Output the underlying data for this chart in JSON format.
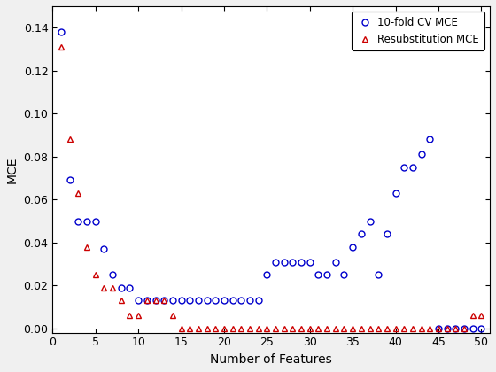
{
  "cv_x": [
    1,
    2,
    3,
    4,
    5,
    6,
    7,
    8,
    9,
    10,
    11,
    12,
    13,
    14,
    15,
    16,
    17,
    18,
    19,
    20,
    21,
    22,
    23,
    24,
    25,
    26,
    27,
    28,
    29,
    30,
    31,
    32,
    33,
    34,
    35,
    36,
    37,
    38,
    39,
    40,
    41,
    42,
    43,
    44,
    45,
    46,
    47,
    48,
    49,
    50
  ],
  "cv_y": [
    0.138,
    0.069,
    0.05,
    0.05,
    0.05,
    0.037,
    0.025,
    0.019,
    0.019,
    0.013,
    0.013,
    0.013,
    0.013,
    0.013,
    0.013,
    0.013,
    0.013,
    0.013,
    0.013,
    0.013,
    0.013,
    0.013,
    0.013,
    0.013,
    0.025,
    0.031,
    0.031,
    0.031,
    0.031,
    0.031,
    0.025,
    0.025,
    0.031,
    0.025,
    0.038,
    0.044,
    0.05,
    0.025,
    0.044,
    0.063,
    0.075,
    0.075,
    0.081,
    0.088,
    0.0,
    0.0,
    0.0,
    0.0,
    0.0,
    0.0
  ],
  "resub_x": [
    1,
    2,
    3,
    4,
    5,
    6,
    7,
    8,
    9,
    10,
    11,
    12,
    13,
    14,
    15,
    16,
    17,
    18,
    19,
    20,
    21,
    22,
    23,
    24,
    25,
    26,
    27,
    28,
    29,
    30,
    31,
    32,
    33,
    34,
    35,
    36,
    37,
    38,
    39,
    40,
    41,
    42,
    43,
    44,
    45,
    46,
    47,
    48,
    49,
    50
  ],
  "resub_y": [
    0.131,
    0.088,
    0.063,
    0.038,
    0.025,
    0.019,
    0.019,
    0.013,
    0.006,
    0.006,
    0.013,
    0.013,
    0.013,
    0.006,
    0.0,
    0.0,
    0.0,
    0.0,
    0.0,
    0.0,
    0.0,
    0.0,
    0.0,
    0.0,
    0.0,
    0.0,
    0.0,
    0.0,
    0.0,
    0.0,
    0.0,
    0.0,
    0.0,
    0.0,
    0.0,
    0.0,
    0.0,
    0.0,
    0.0,
    0.0,
    0.0,
    0.0,
    0.0,
    0.0,
    0.0,
    0.0,
    0.0,
    0.0,
    0.006,
    0.006
  ],
  "xlabel": "Number of Features",
  "ylabel": "MCE",
  "legend_cv": "10-fold CV MCE",
  "legend_resub": "Resubstitution MCE",
  "xlim": [
    0,
    51
  ],
  "ylim": [
    -0.002,
    0.15
  ],
  "yticks": [
    0.0,
    0.02,
    0.04,
    0.06,
    0.08,
    0.1,
    0.12,
    0.14
  ],
  "xticks": [
    0,
    5,
    10,
    15,
    20,
    25,
    30,
    35,
    40,
    45,
    50
  ],
  "cv_color": "#0000cc",
  "resub_color": "#cc0000",
  "axes_bg": "#f5f5f5",
  "fig_bg": "#f0f0f0"
}
